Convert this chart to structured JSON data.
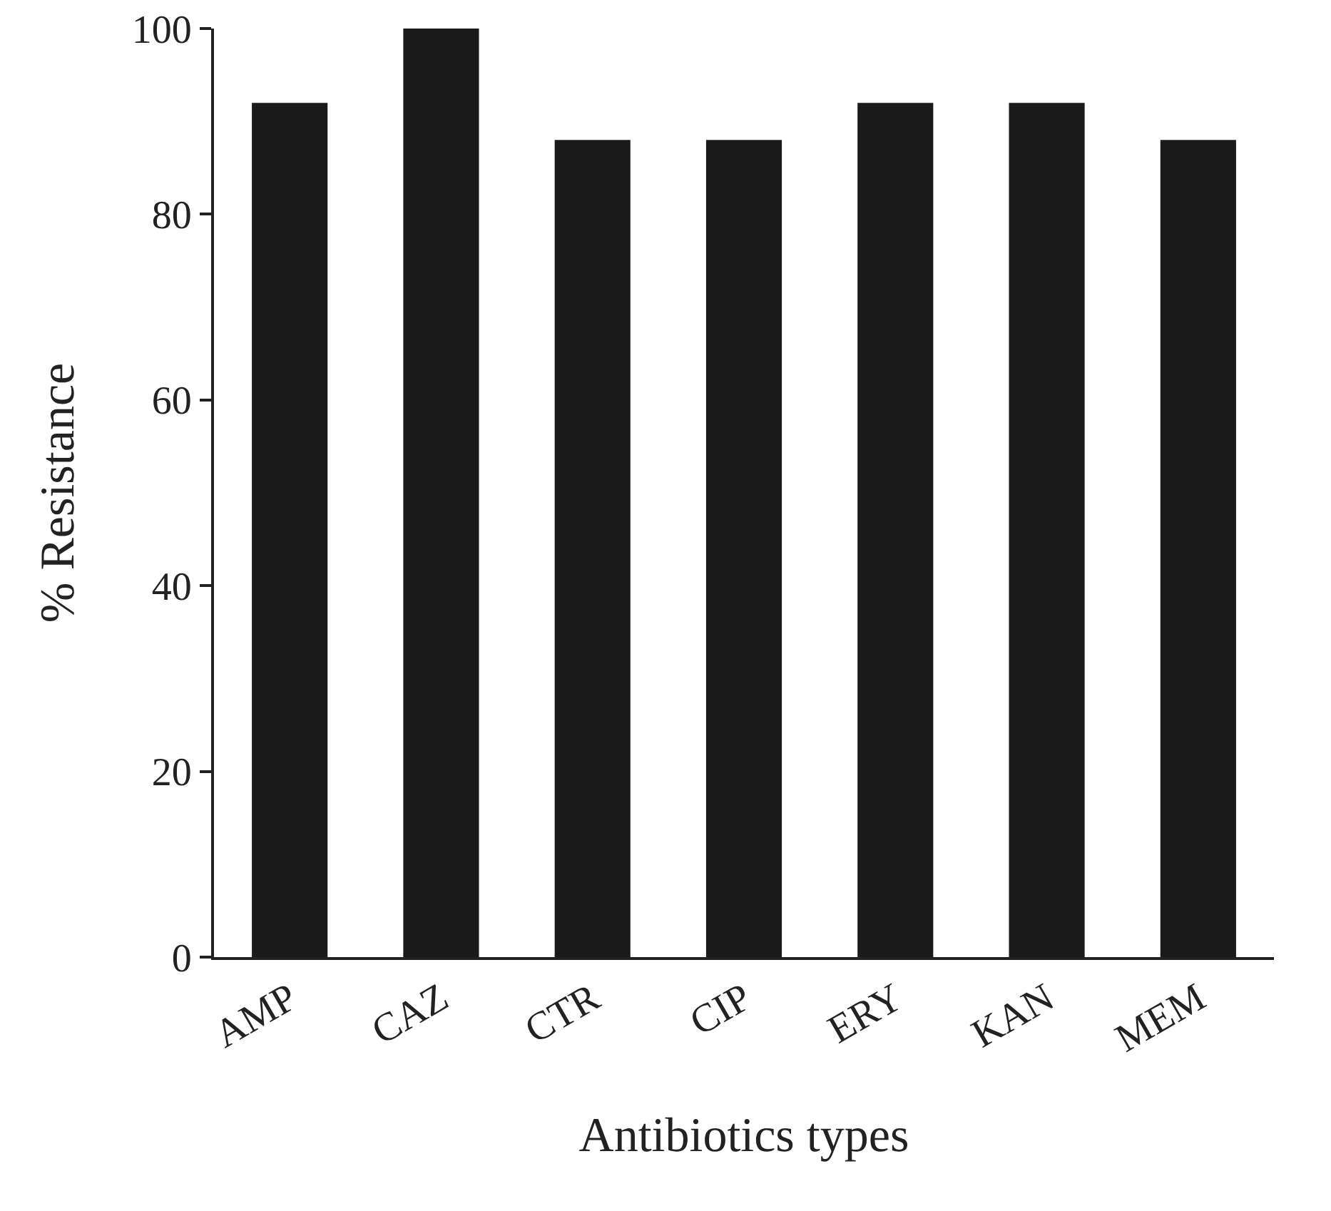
{
  "chart_data": {
    "type": "bar",
    "xlabel": "Antibiotics types",
    "ylabel": "% Resistance",
    "categories": [
      "AMP",
      "CAZ",
      "CTR",
      "CIP",
      "ERY",
      "KAN",
      "MEM"
    ],
    "values": [
      92,
      100,
      88,
      88,
      92,
      92,
      88
    ],
    "color": "#1a1a1a",
    "ylim": [
      0,
      100
    ],
    "yticks": [
      0,
      20,
      40,
      60,
      80,
      100
    ],
    "grid": false
  }
}
